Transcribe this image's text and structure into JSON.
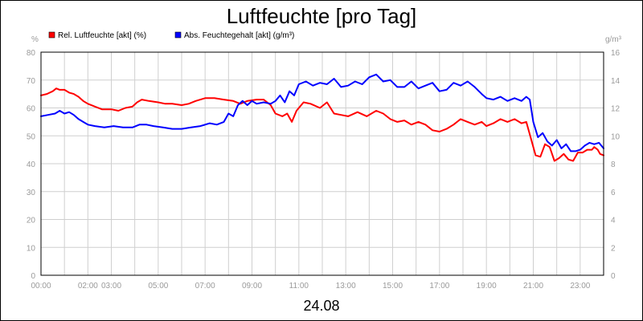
{
  "chart_data": {
    "type": "line",
    "title": "Luftfeuchte [pro Tag]",
    "subtitle": "24.08",
    "y_left_unit": "%",
    "y_right_unit": "g/m³",
    "ylim_left": [
      0,
      80
    ],
    "ylim_right": [
      0,
      16
    ],
    "xlim_hours": [
      0,
      24
    ],
    "grid": true,
    "legend_position": "top-left",
    "x_ticks": [
      {
        "h": 0,
        "label": "00:00"
      },
      {
        "h": 2,
        "label": "02:00"
      },
      {
        "h": 3,
        "label": "03:00"
      },
      {
        "h": 5,
        "label": "05:00"
      },
      {
        "h": 7,
        "label": "07:00"
      },
      {
        "h": 9,
        "label": "09:00"
      },
      {
        "h": 11,
        "label": "11:00"
      },
      {
        "h": 13,
        "label": "13:00"
      },
      {
        "h": 15,
        "label": "15:00"
      },
      {
        "h": 17,
        "label": "17:00"
      },
      {
        "h": 19,
        "label": "19:00"
      },
      {
        "h": 21,
        "label": "21:00"
      },
      {
        "h": 23,
        "label": "23:00"
      }
    ],
    "y_left_ticks": [
      "0",
      "10",
      "20",
      "30",
      "40",
      "50",
      "60",
      "70",
      "80"
    ],
    "y_right_ticks": [
      "0",
      "2",
      "4",
      "6",
      "8",
      "10",
      "12",
      "14",
      "16"
    ],
    "series": [
      {
        "name": "Rel. Luftfeuchte [akt] (%)",
        "color": "#ff0000",
        "axis": "left",
        "points": [
          [
            0,
            64.5
          ],
          [
            0.25,
            65
          ],
          [
            0.5,
            66
          ],
          [
            0.65,
            67
          ],
          [
            0.8,
            66.5
          ],
          [
            1,
            66.5
          ],
          [
            1.2,
            65.5
          ],
          [
            1.4,
            65
          ],
          [
            1.6,
            64
          ],
          [
            1.8,
            62.5
          ],
          [
            2,
            61.5
          ],
          [
            2.3,
            60.5
          ],
          [
            2.6,
            59.5
          ],
          [
            3,
            59.5
          ],
          [
            3.3,
            59
          ],
          [
            3.6,
            60
          ],
          [
            3.9,
            60.5
          ],
          [
            4.1,
            62
          ],
          [
            4.3,
            63
          ],
          [
            4.6,
            62.5
          ],
          [
            5,
            62
          ],
          [
            5.3,
            61.5
          ],
          [
            5.6,
            61.5
          ],
          [
            6,
            61
          ],
          [
            6.3,
            61.5
          ],
          [
            6.6,
            62.5
          ],
          [
            7,
            63.5
          ],
          [
            7.4,
            63.5
          ],
          [
            7.8,
            63
          ],
          [
            8.2,
            62.5
          ],
          [
            8.5,
            61.5
          ],
          [
            8.8,
            62.5
          ],
          [
            9.2,
            63
          ],
          [
            9.5,
            63
          ],
          [
            9.8,
            61
          ],
          [
            10,
            58
          ],
          [
            10.3,
            57
          ],
          [
            10.5,
            58
          ],
          [
            10.7,
            55
          ],
          [
            10.9,
            59
          ],
          [
            11.2,
            62
          ],
          [
            11.5,
            61.5
          ],
          [
            11.9,
            60
          ],
          [
            12.2,
            62
          ],
          [
            12.5,
            58
          ],
          [
            12.8,
            57.5
          ],
          [
            13.1,
            57
          ],
          [
            13.5,
            58.5
          ],
          [
            13.9,
            57
          ],
          [
            14.3,
            59
          ],
          [
            14.6,
            58
          ],
          [
            14.9,
            56
          ],
          [
            15.2,
            55
          ],
          [
            15.5,
            55.5
          ],
          [
            15.8,
            54
          ],
          [
            16.1,
            55
          ],
          [
            16.4,
            54
          ],
          [
            16.7,
            52
          ],
          [
            17,
            51.5
          ],
          [
            17.3,
            52.5
          ],
          [
            17.6,
            54
          ],
          [
            17.9,
            56
          ],
          [
            18.2,
            55
          ],
          [
            18.5,
            54
          ],
          [
            18.8,
            55
          ],
          [
            19,
            53.5
          ],
          [
            19.3,
            54.5
          ],
          [
            19.6,
            56
          ],
          [
            19.9,
            55
          ],
          [
            20.2,
            56
          ],
          [
            20.5,
            54.5
          ],
          [
            20.7,
            55
          ],
          [
            20.9,
            49
          ],
          [
            21.1,
            43
          ],
          [
            21.3,
            42.5
          ],
          [
            21.5,
            47
          ],
          [
            21.7,
            46
          ],
          [
            21.9,
            41
          ],
          [
            22.1,
            42
          ],
          [
            22.3,
            43.5
          ],
          [
            22.5,
            41.5
          ],
          [
            22.7,
            41
          ],
          [
            22.9,
            44
          ],
          [
            23.1,
            44
          ],
          [
            23.3,
            45
          ],
          [
            23.5,
            45
          ],
          [
            23.6,
            46
          ],
          [
            23.75,
            45
          ],
          [
            23.85,
            43.5
          ],
          [
            24,
            43
          ]
        ]
      },
      {
        "name": "Abs. Feuchtegehalt [akt] (g/m³)",
        "color": "#0000ff",
        "axis": "right",
        "points": [
          [
            0,
            11.4
          ],
          [
            0.3,
            11.5
          ],
          [
            0.6,
            11.6
          ],
          [
            0.8,
            11.8
          ],
          [
            1,
            11.6
          ],
          [
            1.2,
            11.7
          ],
          [
            1.4,
            11.5
          ],
          [
            1.6,
            11.2
          ],
          [
            1.8,
            11
          ],
          [
            2,
            10.8
          ],
          [
            2.3,
            10.7
          ],
          [
            2.7,
            10.6
          ],
          [
            3.1,
            10.7
          ],
          [
            3.5,
            10.6
          ],
          [
            3.9,
            10.6
          ],
          [
            4.2,
            10.8
          ],
          [
            4.5,
            10.8
          ],
          [
            4.8,
            10.7
          ],
          [
            5.2,
            10.6
          ],
          [
            5.6,
            10.5
          ],
          [
            6,
            10.5
          ],
          [
            6.4,
            10.6
          ],
          [
            6.8,
            10.7
          ],
          [
            7.2,
            10.9
          ],
          [
            7.5,
            10.8
          ],
          [
            7.8,
            11
          ],
          [
            8,
            11.6
          ],
          [
            8.2,
            11.4
          ],
          [
            8.4,
            12.2
          ],
          [
            8.6,
            12.5
          ],
          [
            8.8,
            12.2
          ],
          [
            9,
            12.5
          ],
          [
            9.2,
            12.3
          ],
          [
            9.5,
            12.4
          ],
          [
            9.8,
            12.3
          ],
          [
            10,
            12.5
          ],
          [
            10.2,
            12.9
          ],
          [
            10.4,
            12.4
          ],
          [
            10.6,
            13.2
          ],
          [
            10.8,
            12.9
          ],
          [
            11,
            13.7
          ],
          [
            11.3,
            13.9
          ],
          [
            11.6,
            13.6
          ],
          [
            11.9,
            13.8
          ],
          [
            12.2,
            13.7
          ],
          [
            12.5,
            14.1
          ],
          [
            12.8,
            13.5
          ],
          [
            13.1,
            13.6
          ],
          [
            13.4,
            13.9
          ],
          [
            13.7,
            13.7
          ],
          [
            14,
            14.2
          ],
          [
            14.3,
            14.4
          ],
          [
            14.6,
            13.9
          ],
          [
            14.9,
            14
          ],
          [
            15.2,
            13.5
          ],
          [
            15.5,
            13.5
          ],
          [
            15.8,
            13.9
          ],
          [
            16.1,
            13.4
          ],
          [
            16.4,
            13.6
          ],
          [
            16.7,
            13.8
          ],
          [
            17,
            13.2
          ],
          [
            17.3,
            13.3
          ],
          [
            17.6,
            13.8
          ],
          [
            17.9,
            13.6
          ],
          [
            18.2,
            13.9
          ],
          [
            18.5,
            13.5
          ],
          [
            18.8,
            13
          ],
          [
            19,
            12.7
          ],
          [
            19.3,
            12.6
          ],
          [
            19.6,
            12.8
          ],
          [
            19.9,
            12.5
          ],
          [
            20.2,
            12.7
          ],
          [
            20.5,
            12.5
          ],
          [
            20.7,
            12.8
          ],
          [
            20.85,
            12.6
          ],
          [
            21,
            11
          ],
          [
            21.2,
            9.9
          ],
          [
            21.4,
            10.2
          ],
          [
            21.6,
            9.6
          ],
          [
            21.8,
            9.3
          ],
          [
            22,
            9.7
          ],
          [
            22.2,
            9.1
          ],
          [
            22.4,
            9.4
          ],
          [
            22.6,
            8.9
          ],
          [
            22.8,
            8.9
          ],
          [
            23,
            9
          ],
          [
            23.2,
            9.3
          ],
          [
            23.4,
            9.5
          ],
          [
            23.6,
            9.4
          ],
          [
            23.8,
            9.5
          ],
          [
            24,
            9.1
          ]
        ]
      }
    ]
  }
}
